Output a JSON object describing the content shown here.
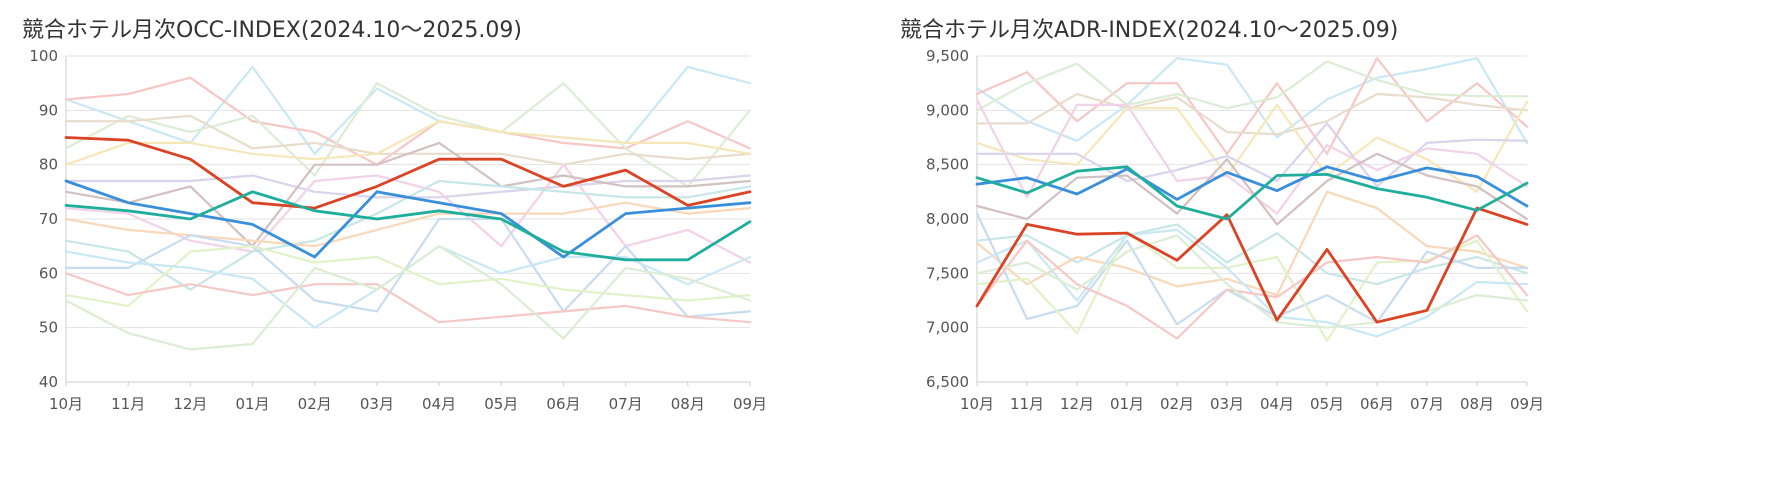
{
  "colors": {
    "grid": "#e3e3e3",
    "axis": "#cccccc",
    "muted": [
      "#c9e8f4",
      "#f5c8c6",
      "#dcecd5",
      "#e8dccd",
      "#f6e7b8",
      "#d9d3ec",
      "#f1d2e8",
      "#d3c0c0",
      "#c6e6e8",
      "#f8d8b8",
      "#c8dcf0",
      "#e2f2c8"
    ],
    "highlight": [
      "#db4325",
      "#3a8fdb",
      "#1fae9c"
    ]
  },
  "chart_data": [
    {
      "type": "line",
      "title": "競合ホテル月次OCC-INDEX(2024.10～2025.09)",
      "categories": [
        "10月",
        "11月",
        "12月",
        "01月",
        "02月",
        "03月",
        "04月",
        "05月",
        "06月",
        "07月",
        "08月",
        "09月"
      ],
      "ylim": [
        40,
        100
      ],
      "yticks": [
        "40",
        "50",
        "60",
        "70",
        "80",
        "90",
        "100"
      ],
      "grid": true,
      "muted_series": [
        {
          "values": [
            92,
            88,
            84,
            98,
            82,
            94,
            88,
            86,
            85,
            84,
            98,
            95
          ]
        },
        {
          "values": [
            92,
            93,
            96,
            88,
            86,
            80,
            88,
            86,
            84,
            83,
            88,
            83
          ]
        },
        {
          "values": [
            83,
            89,
            86,
            89,
            78,
            95,
            89,
            86,
            95,
            83,
            76,
            90
          ]
        },
        {
          "values": [
            88,
            88,
            89,
            83,
            84,
            82,
            82,
            82,
            80,
            82,
            81,
            82
          ]
        },
        {
          "values": [
            80,
            84,
            84,
            82,
            81,
            82,
            88,
            86,
            85,
            84,
            84,
            82
          ]
        },
        {
          "values": [
            77,
            77,
            77,
            78,
            75,
            74,
            74,
            75,
            76,
            77,
            77,
            78
          ]
        },
        {
          "values": [
            72,
            71,
            66,
            64,
            77,
            78,
            75,
            65,
            80,
            65,
            68,
            62
          ]
        },
        {
          "values": [
            75,
            73,
            76,
            65,
            80,
            80,
            84,
            76,
            78,
            76,
            76,
            77
          ]
        },
        {
          "values": [
            66,
            64,
            57,
            64,
            66,
            71,
            77,
            76,
            75,
            74,
            74,
            76
          ]
        },
        {
          "values": [
            70,
            68,
            67,
            66,
            65,
            68,
            71,
            71,
            71,
            73,
            71,
            72
          ]
        },
        {
          "values": [
            61,
            61,
            67,
            65,
            55,
            53,
            70,
            70,
            53,
            65,
            52,
            53
          ]
        },
        {
          "values": [
            56,
            54,
            64,
            65,
            62,
            63,
            58,
            59,
            57,
            56,
            55,
            56
          ]
        },
        {
          "values": [
            64,
            62,
            61,
            59,
            50,
            57,
            65,
            60,
            63,
            63,
            58,
            63
          ]
        },
        {
          "values": [
            60,
            56,
            58,
            56,
            58,
            58,
            51,
            52,
            53,
            54,
            52,
            51
          ]
        },
        {
          "values": [
            55,
            49,
            46,
            47,
            61,
            57,
            65,
            58,
            48,
            61,
            59,
            55
          ]
        }
      ],
      "highlight_series": [
        {
          "values": [
            85,
            84.5,
            81,
            73,
            72,
            76,
            81,
            81,
            76,
            79,
            72.5,
            75
          ]
        },
        {
          "values": [
            77,
            73,
            71,
            69,
            63,
            75,
            73,
            71,
            63,
            71,
            72,
            73
          ]
        },
        {
          "values": [
            72.5,
            71.5,
            70,
            75,
            71.5,
            70,
            71.5,
            70,
            64,
            62.5,
            62.5,
            69.5
          ]
        }
      ]
    },
    {
      "type": "line",
      "title": "競合ホテル月次ADR-INDEX(2024.10～2025.09)",
      "categories": [
        "10月",
        "11月",
        "12月",
        "01月",
        "02月",
        "03月",
        "04月",
        "05月",
        "06月",
        "07月",
        "08月",
        "09月"
      ],
      "ylim": [
        6500,
        9500
      ],
      "yticks": [
        "6,500",
        "7,000",
        "7,500",
        "8,000",
        "8,500",
        "9,000",
        "9,500"
      ],
      "grid": true,
      "muted_series": [
        {
          "values": [
            9200,
            8900,
            8720,
            9050,
            9480,
            9420,
            8750,
            9100,
            9300,
            9380,
            9480,
            8700
          ]
        },
        {
          "values": [
            9150,
            9350,
            8900,
            9250,
            9250,
            8600,
            9250,
            8600,
            9480,
            8900,
            9250,
            8850
          ]
        },
        {
          "values": [
            9000,
            9250,
            9430,
            9050,
            9150,
            9020,
            9120,
            9450,
            9280,
            9150,
            9130,
            9130
          ]
        },
        {
          "values": [
            8880,
            8880,
            9150,
            9020,
            9120,
            8800,
            8780,
            8900,
            9150,
            9120,
            9050,
            9000
          ]
        },
        {
          "values": [
            8700,
            8550,
            8500,
            9020,
            9020,
            8400,
            9050,
            8400,
            8750,
            8550,
            8250,
            9080
          ]
        },
        {
          "values": [
            8600,
            8600,
            8600,
            8350,
            8450,
            8580,
            8350,
            8880,
            8300,
            8700,
            8730,
            8720
          ]
        },
        {
          "values": [
            9100,
            8200,
            9050,
            9050,
            8350,
            8400,
            8050,
            8680,
            8450,
            8650,
            8600,
            8300
          ]
        },
        {
          "values": [
            8120,
            8000,
            8380,
            8400,
            8050,
            8550,
            7950,
            8350,
            8600,
            8400,
            8300,
            8000
          ]
        },
        {
          "values": [
            7800,
            7850,
            7600,
            7850,
            7950,
            7600,
            7870,
            7500,
            7400,
            7550,
            7650,
            7500
          ]
        },
        {
          "values": [
            7780,
            7400,
            7650,
            7550,
            7380,
            7450,
            7300,
            8250,
            8100,
            7750,
            7700,
            7550
          ]
        },
        {
          "values": [
            8050,
            7080,
            7200,
            7800,
            7030,
            7350,
            7100,
            7300,
            7050,
            7700,
            7550,
            7550
          ]
        },
        {
          "values": [
            7400,
            7450,
            6950,
            7880,
            7550,
            7550,
            7650,
            6880,
            7600,
            7620,
            7800,
            7150
          ]
        },
        {
          "values": [
            7600,
            7800,
            7250,
            7850,
            7900,
            7550,
            7100,
            7050,
            6920,
            7100,
            7420,
            7400
          ]
        },
        {
          "values": [
            7200,
            7800,
            7400,
            7200,
            6900,
            7350,
            7280,
            7600,
            7650,
            7600,
            7850,
            7300
          ]
        },
        {
          "values": [
            7500,
            7600,
            7350,
            7700,
            7850,
            7400,
            7050,
            7000,
            7050,
            7150,
            7300,
            7250
          ]
        }
      ],
      "highlight_series": [
        {
          "values": [
            7200,
            7950,
            7860,
            7870,
            7620,
            8040,
            7070,
            7720,
            7050,
            7160,
            8100,
            7950
          ]
        },
        {
          "values": [
            8320,
            8380,
            8230,
            8460,
            8180,
            8430,
            8260,
            8480,
            8350,
            8470,
            8390,
            8120
          ]
        },
        {
          "values": [
            8380,
            8240,
            8440,
            8480,
            8120,
            8000,
            8400,
            8410,
            8280,
            8200,
            8080,
            8330
          ]
        }
      ]
    }
  ]
}
